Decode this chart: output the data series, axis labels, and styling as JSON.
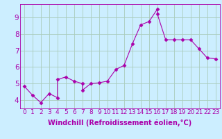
{
  "title": "",
  "xlabel": "Windchill (Refroidissement éolien,°C)",
  "ylabel": "",
  "background_color": "#cceeff",
  "line_color": "#aa00aa",
  "xlim": [
    -0.5,
    23.5
  ],
  "ylim": [
    3.5,
    9.8
  ],
  "xticks": [
    0,
    1,
    2,
    3,
    4,
    5,
    6,
    7,
    8,
    9,
    10,
    11,
    12,
    13,
    14,
    15,
    16,
    17,
    18,
    19,
    20,
    21,
    22,
    23
  ],
  "yticks": [
    4,
    5,
    6,
    7,
    8,
    9
  ],
  "grid_color": "#aaccbb",
  "x_data": [
    0,
    1,
    2,
    3,
    4,
    4,
    5,
    6,
    7,
    7,
    8,
    9,
    10,
    11,
    12,
    13,
    14,
    15,
    16,
    16,
    17,
    18,
    19,
    20,
    21,
    22,
    23
  ],
  "y_data": [
    4.85,
    4.3,
    3.85,
    4.4,
    4.15,
    5.25,
    5.4,
    5.15,
    5.0,
    4.6,
    5.0,
    5.05,
    5.15,
    5.85,
    6.1,
    7.4,
    8.55,
    8.75,
    9.5,
    9.2,
    7.65,
    7.65,
    7.65,
    7.65,
    7.1,
    6.55,
    6.5
  ],
  "marker_size": 2.5,
  "font_size_label": 7,
  "font_size_tick": 6.5
}
